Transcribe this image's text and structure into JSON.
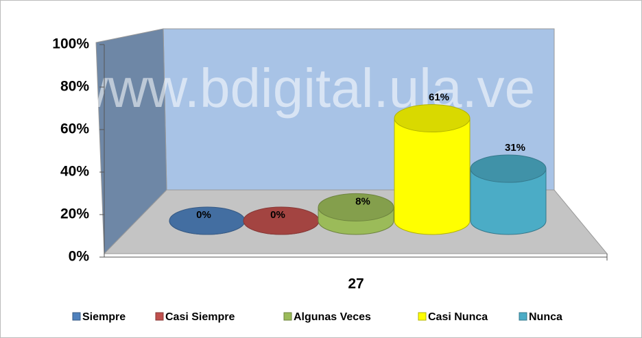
{
  "chart_data": {
    "type": "cylinder3d",
    "watermark": "www.bdigital.ula.ve",
    "categories": [
      "27"
    ],
    "series": [
      {
        "name": "Siempre",
        "color": "#4f81bd",
        "values": [
          0
        ],
        "value_labels": [
          "0%"
        ]
      },
      {
        "name": "Casi Siempre",
        "color": "#c0504d",
        "values": [
          0
        ],
        "value_labels": [
          "0%"
        ]
      },
      {
        "name": "Algunas Veces",
        "color": "#9bbb59",
        "values": [
          8
        ],
        "value_labels": [
          "8%"
        ]
      },
      {
        "name": "Casi Nunca",
        "color": "#ffff00",
        "values": [
          61
        ],
        "value_labels": [
          "61%"
        ]
      },
      {
        "name": "Nunca",
        "color": "#4bacc6",
        "values": [
          31
        ],
        "value_labels": [
          "31%"
        ]
      }
    ],
    "ylim": [
      0,
      100
    ],
    "yticks": [
      {
        "value": 0,
        "label": "0%"
      },
      {
        "value": 20,
        "label": "20%"
      },
      {
        "value": 40,
        "label": "40%"
      },
      {
        "value": 60,
        "label": "60%"
      },
      {
        "value": 80,
        "label": "80%"
      },
      {
        "value": 100,
        "label": "100%"
      }
    ],
    "legend": "bottom"
  }
}
